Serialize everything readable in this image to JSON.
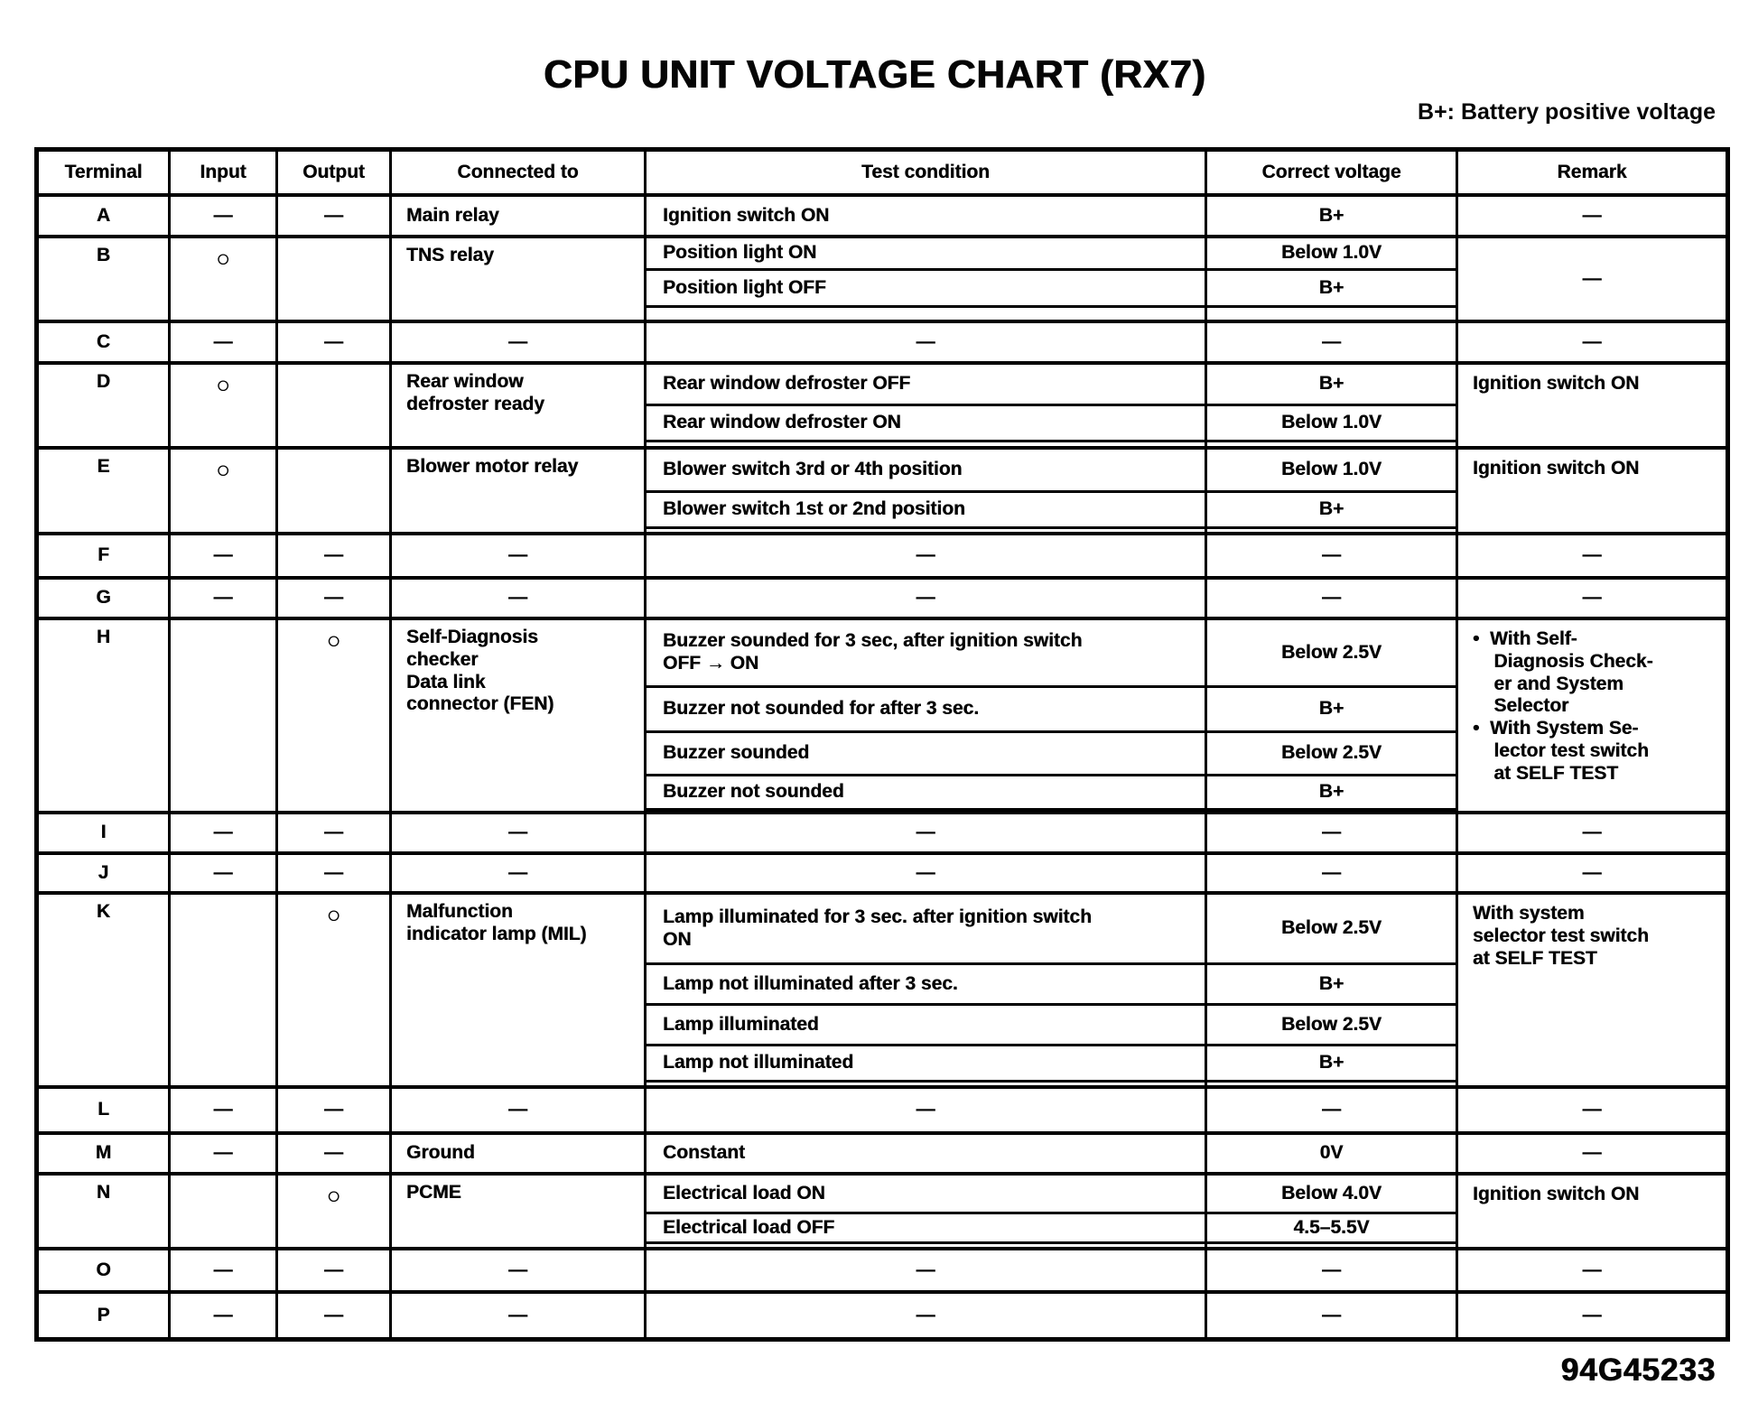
{
  "page": {
    "title": "CPU UNIT VOLTAGE CHART (RX7)",
    "legend": "B+: Battery positive voltage",
    "doc_number": "94G45233"
  },
  "table": {
    "headers": {
      "terminal": "Terminal",
      "input": "Input",
      "output": "Output",
      "connected": "Connected to",
      "test": "Test condition",
      "voltage": "Correct voltage",
      "remark": "Remark"
    },
    "rows": [
      {
        "terminal": "A",
        "input": "—",
        "output": "—",
        "connected": "Main relay",
        "conditions": [
          {
            "test": "Ignition switch ON",
            "voltage": "B+"
          }
        ],
        "remark": "—"
      },
      {
        "terminal": "B",
        "input": "○",
        "output": "",
        "connected": "TNS relay",
        "conditions": [
          {
            "test": "Position light ON",
            "voltage": "Below 1.0V"
          },
          {
            "test": "Position light OFF",
            "voltage": "B+"
          }
        ],
        "remark": "—"
      },
      {
        "terminal": "C",
        "input": "—",
        "output": "—",
        "connected": "—",
        "conditions": [
          {
            "test": "—",
            "voltage": "—"
          }
        ],
        "remark": "—"
      },
      {
        "terminal": "D",
        "input": "○",
        "output": "",
        "connected": "Rear window\ndefroster ready",
        "conditions": [
          {
            "test": "Rear window defroster OFF",
            "voltage": "B+"
          },
          {
            "test": "Rear window defroster ON",
            "voltage": "Below 1.0V"
          }
        ],
        "remark": "Ignition switch ON"
      },
      {
        "terminal": "E",
        "input": "○",
        "output": "",
        "connected": "Blower motor relay",
        "conditions": [
          {
            "test": "Blower switch 3rd or 4th position",
            "voltage": "Below 1.0V"
          },
          {
            "test": "Blower switch 1st or 2nd position",
            "voltage": "B+"
          }
        ],
        "remark": "Ignition switch ON"
      },
      {
        "terminal": "F",
        "input": "—",
        "output": "—",
        "connected": "—",
        "conditions": [
          {
            "test": "—",
            "voltage": "—"
          }
        ],
        "remark": "—"
      },
      {
        "terminal": "G",
        "input": "—",
        "output": "—",
        "connected": "—",
        "conditions": [
          {
            "test": "—",
            "voltage": "—"
          }
        ],
        "remark": "—"
      },
      {
        "terminal": "H",
        "input": "",
        "output": "○",
        "connected": "Self-Diagnosis\nchecker\nData link\nconnector (FEN)",
        "conditions": [
          {
            "test": "Buzzer sounded for 3 sec, after ignition switch\nOFF → ON",
            "voltage": "Below 2.5V"
          },
          {
            "test": "Buzzer not sounded for after 3 sec.",
            "voltage": "B+"
          },
          {
            "test": "Buzzer sounded",
            "voltage": "Below 2.5V"
          },
          {
            "test": "Buzzer not sounded",
            "voltage": "B+"
          }
        ],
        "remark": "•  With Self-\n    Diagnosis Check-\n    er and System\n    Selector\n•  With System Se-\n    lector test switch\n    at SELF TEST"
      },
      {
        "terminal": "I",
        "input": "—",
        "output": "—",
        "connected": "—",
        "conditions": [
          {
            "test": "—",
            "voltage": "—"
          }
        ],
        "remark": "—"
      },
      {
        "terminal": "J",
        "input": "—",
        "output": "—",
        "connected": "—",
        "conditions": [
          {
            "test": "—",
            "voltage": "—"
          }
        ],
        "remark": "—"
      },
      {
        "terminal": "K",
        "input": "",
        "output": "○",
        "connected": "Malfunction\nindicator lamp (MIL)",
        "conditions": [
          {
            "test": "Lamp illuminated for 3 sec. after ignition switch\nON",
            "voltage": "Below 2.5V"
          },
          {
            "test": "Lamp not illuminated after 3 sec.",
            "voltage": "B+"
          },
          {
            "test": "Lamp illuminated",
            "voltage": "Below 2.5V"
          },
          {
            "test": "Lamp not illuminated",
            "voltage": "B+"
          }
        ],
        "remark": "With system\nselector test switch\nat SELF TEST"
      },
      {
        "terminal": "L",
        "input": "—",
        "output": "—",
        "connected": "—",
        "conditions": [
          {
            "test": "—",
            "voltage": "—"
          }
        ],
        "remark": "—"
      },
      {
        "terminal": "M",
        "input": "—",
        "output": "—",
        "connected": "Ground",
        "conditions": [
          {
            "test": "Constant",
            "voltage": "0V"
          }
        ],
        "remark": "—"
      },
      {
        "terminal": "N",
        "input": "",
        "output": "○",
        "connected": "PCME",
        "conditions": [
          {
            "test": "Electrical load ON",
            "voltage": "Below 4.0V"
          },
          {
            "test": "Electrical load OFF",
            "voltage": "4.5–5.5V"
          }
        ],
        "remark": "Ignition switch ON"
      },
      {
        "terminal": "O",
        "input": "—",
        "output": "—",
        "connected": "—",
        "conditions": [
          {
            "test": "—",
            "voltage": "—"
          }
        ],
        "remark": "—"
      },
      {
        "terminal": "P",
        "input": "—",
        "output": "—",
        "connected": "—",
        "conditions": [
          {
            "test": "—",
            "voltage": "—"
          }
        ],
        "remark": "—"
      }
    ]
  }
}
